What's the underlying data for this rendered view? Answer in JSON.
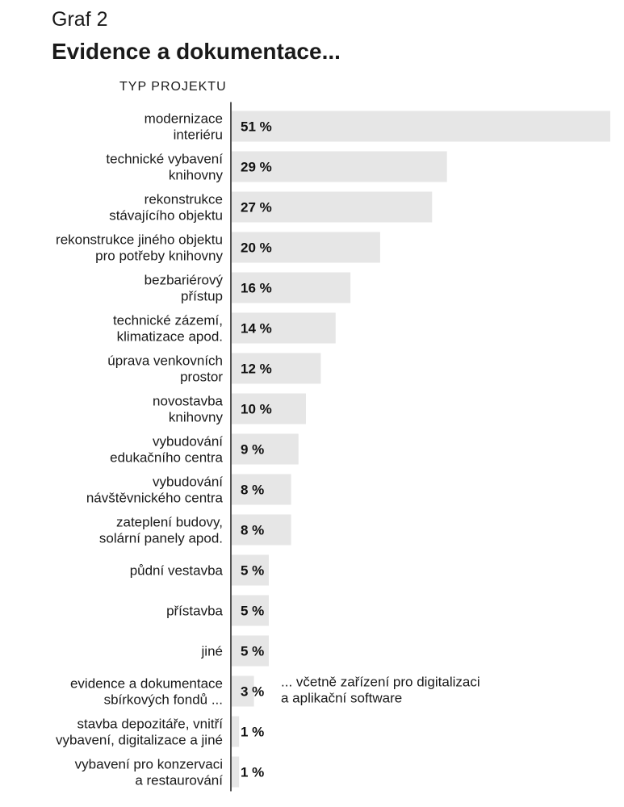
{
  "header": {
    "graf_label": "Graf 2",
    "title": "Evidence a dokumentace..."
  },
  "chart_data": {
    "type": "bar",
    "orientation": "horizontal",
    "ylabel": "TYP PROJEKTU",
    "categories": [
      [
        "modernizace",
        "interiéru"
      ],
      [
        "technické vybavení",
        "knihovny"
      ],
      [
        "rekonstrukce",
        "stávajícího objektu"
      ],
      [
        "rekonstrukce jiného objektu",
        "pro potřeby knihovny"
      ],
      [
        "bezbariérový",
        "přístup"
      ],
      [
        "technické zázemí,",
        "klimatizace apod."
      ],
      [
        "úprava venkovních",
        "prostor"
      ],
      [
        "novostavba",
        "knihovny"
      ],
      [
        "vybudování",
        "edukačního centra"
      ],
      [
        "vybudování",
        "návštěvnického centra"
      ],
      [
        "zateplení budovy,",
        "solární panely apod."
      ],
      [
        "půdní vestavba"
      ],
      [
        "přístavba"
      ],
      [
        "jiné"
      ],
      [
        "evidence a dokumentace",
        "sbírkových fondů ..."
      ],
      [
        "stavba depozitáře, vnitří",
        "vybavení, digitalizace a jiné"
      ],
      [
        "vybavení pro konzervaci",
        "a restaurování"
      ]
    ],
    "values": [
      51,
      29,
      27,
      20,
      16,
      14,
      12,
      10,
      9,
      8,
      8,
      5,
      5,
      5,
      3,
      1,
      1
    ],
    "value_labels": [
      "51 %",
      "29 %",
      "27 %",
      "20 %",
      "16 %",
      "14 %",
      "12 %",
      "10 %",
      "9 %",
      "8 %",
      "8 %",
      "5 %",
      "5 %",
      "5 %",
      "3 %",
      "1 %",
      "1 %"
    ],
    "unit": "%",
    "xlim": [
      0,
      51
    ],
    "annotation": {
      "category_index": 14,
      "lines": [
        "... včetně zařízení pro digitalizaci",
        "a aplikační software"
      ]
    },
    "bar_color": "#e6e6e6",
    "axis_color": "#1a1a1a",
    "grid": false,
    "legend": "none"
  }
}
